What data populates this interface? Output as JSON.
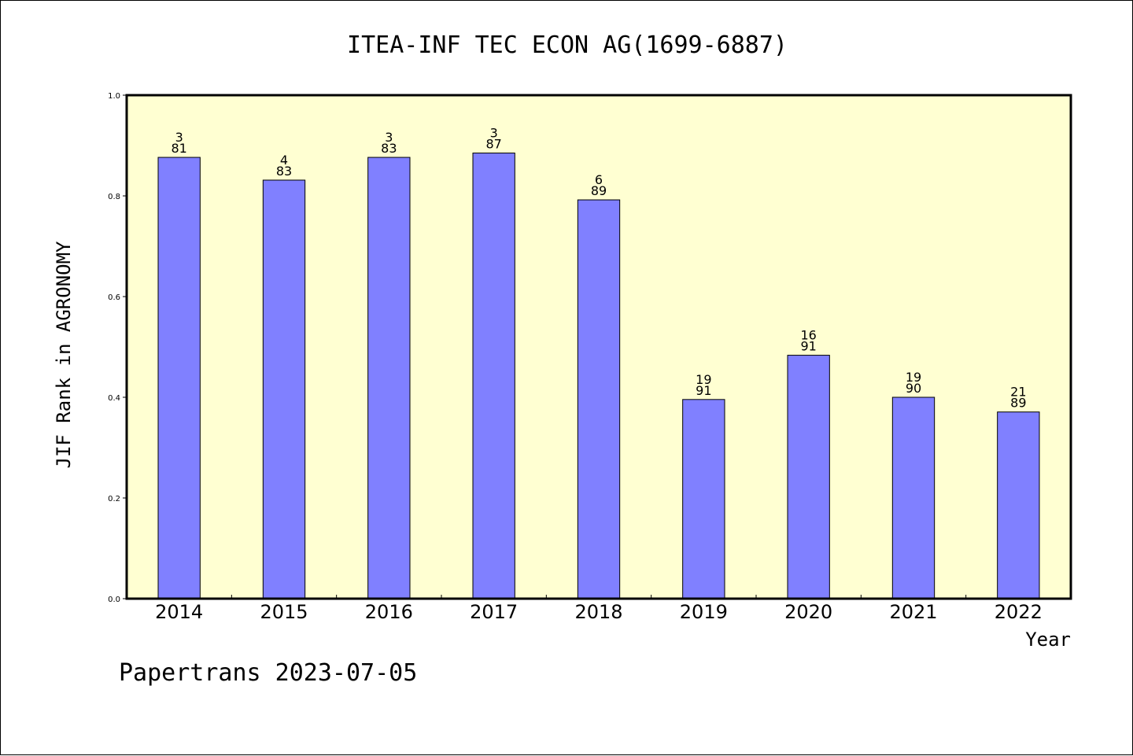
{
  "chart_data": {
    "type": "bar",
    "title": "ITEA-INF TEC ECON AG(1699-6887)",
    "xlabel": "Year",
    "ylabel": "JIF Rank in AGRONOMY",
    "categories": [
      "2014",
      "2015",
      "2016",
      "2017",
      "2018",
      "2019",
      "2020",
      "2021",
      "2022"
    ],
    "values": [
      0.8765,
      0.8313,
      0.8765,
      0.8851,
      0.7921,
      0.3956,
      0.4835,
      0.4,
      0.3708
    ],
    "bar_labels": [
      [
        "3",
        "81"
      ],
      [
        "4",
        "83"
      ],
      [
        "3",
        "83"
      ],
      [
        "3",
        "87"
      ],
      [
        "6",
        "89"
      ],
      [
        "19",
        "91"
      ],
      [
        "16",
        "91"
      ],
      [
        "19",
        "90"
      ],
      [
        "21",
        "89"
      ]
    ],
    "ylim": [
      0,
      1.0
    ],
    "yticks": [
      "0.0",
      "0.2",
      "0.4",
      "0.6",
      "0.8",
      "1.0"
    ],
    "grid": false,
    "plot_background": "#ffffd2",
    "bar_color": "#8080ff",
    "legend": "none"
  },
  "footer": {
    "note": "Papertrans 2023-07-05"
  }
}
